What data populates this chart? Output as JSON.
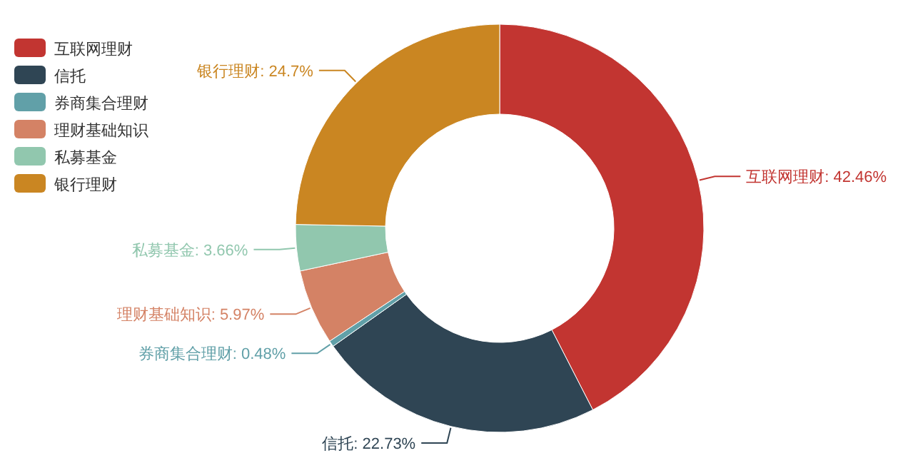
{
  "chart_data": {
    "type": "donut",
    "categories": [
      "互联网理财",
      "信托",
      "券商集合理财",
      "理财基础知识",
      "私募基金",
      "银行理财"
    ],
    "values": [
      42.46,
      22.73,
      0.48,
      5.97,
      3.66,
      24.7
    ],
    "colors": [
      "#c23531",
      "#2f4554",
      "#61a0a8",
      "#d48265",
      "#91c7ae",
      "#ca8622"
    ],
    "value_labels": [
      "互联网理财: 42.46%",
      "信托: 22.73%",
      "券商集合理财: 0.48%",
      "理财基础知识: 5.97%",
      "私募基金: 3.66%",
      "银行理财: 24.7%"
    ],
    "legend": "top left"
  }
}
